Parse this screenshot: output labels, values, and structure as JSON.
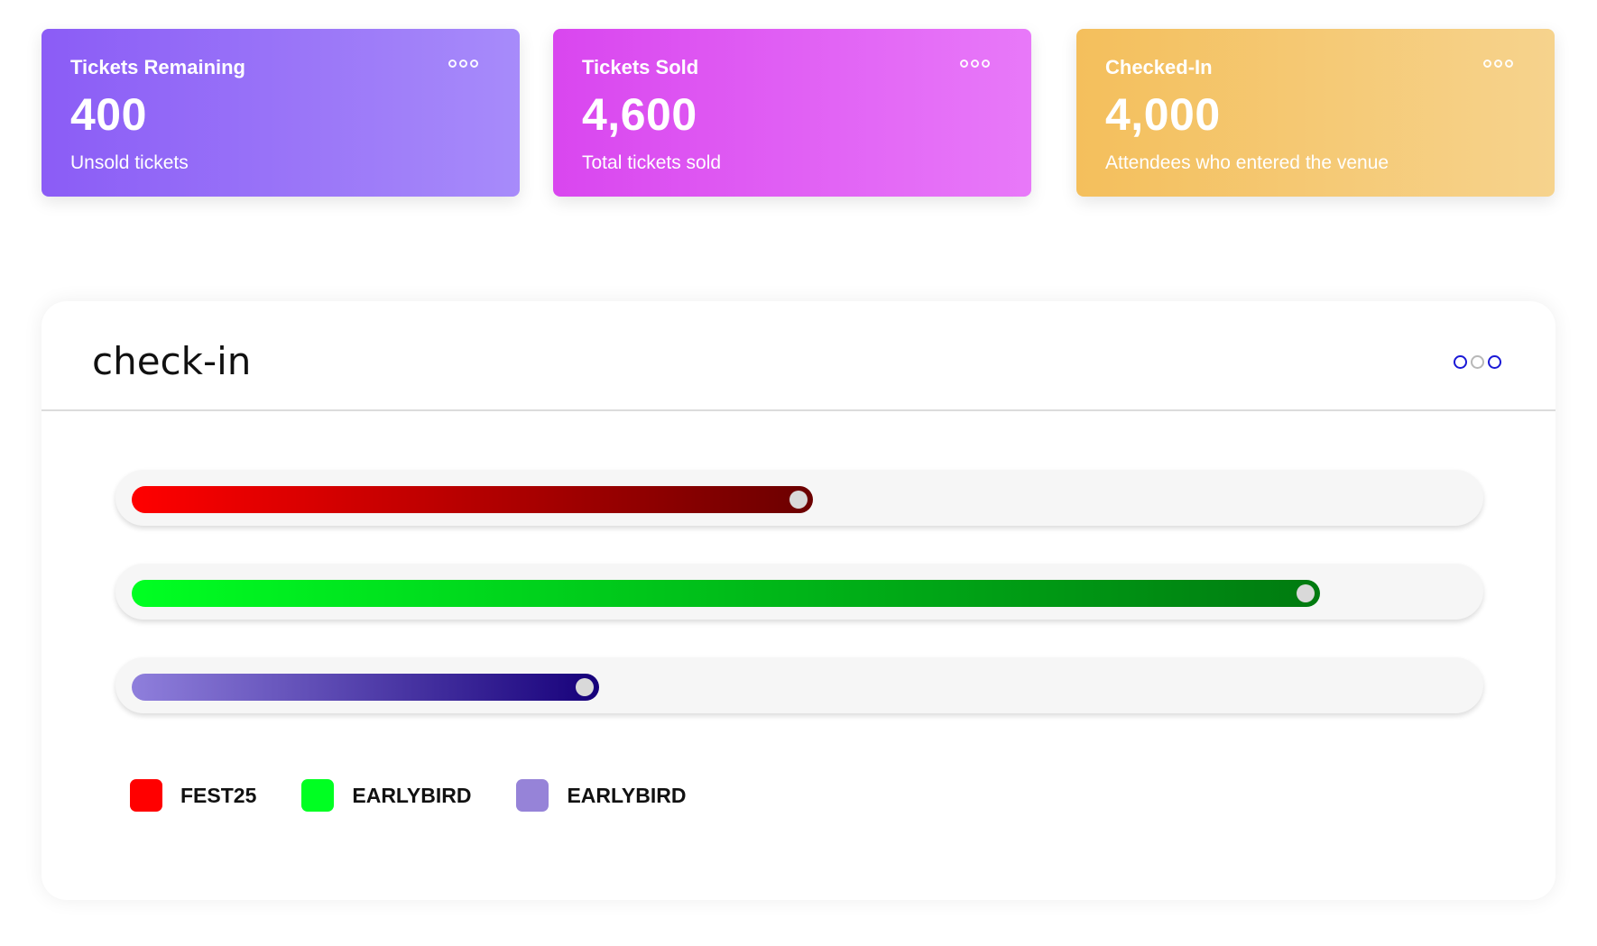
{
  "cards": [
    {
      "title": "Tickets Remaining",
      "value": "400",
      "subtitle": "Unsold tickets",
      "gradient": [
        "#8b5cf6",
        "#a78bfa"
      ]
    },
    {
      "title": "Tickets Sold",
      "value": "4,600",
      "subtitle": "Total tickets sold",
      "gradient": [
        "#d946ef",
        "#e879f9"
      ]
    },
    {
      "title": "Checked-In",
      "value": "4,000",
      "subtitle": "Attendees who entered the venue",
      "gradient": [
        "#f4bf5c",
        "#f6d38d"
      ]
    }
  ],
  "panel": {
    "title": "check-in",
    "menu_icon": "more-dots-icon"
  },
  "progress_bars": [
    {
      "label": "FEST25",
      "fraction": 0.51,
      "color_start": "#ff0000",
      "color_end": "#6b0000"
    },
    {
      "label": "EARLYBIRD",
      "fraction": 0.89,
      "color_start": "#00ff22",
      "color_end": "#007a10"
    },
    {
      "label": "EARLYBIRD",
      "fraction": 0.35,
      "color_start": "#8f7fdc",
      "color_end": "#16007a"
    }
  ],
  "legend": [
    {
      "label": "FEST25",
      "color": "#ff0000"
    },
    {
      "label": "EARLYBIRD",
      "color": "#00ff22"
    },
    {
      "label": "EARLYBIRD",
      "color": "#9683d8"
    }
  ]
}
